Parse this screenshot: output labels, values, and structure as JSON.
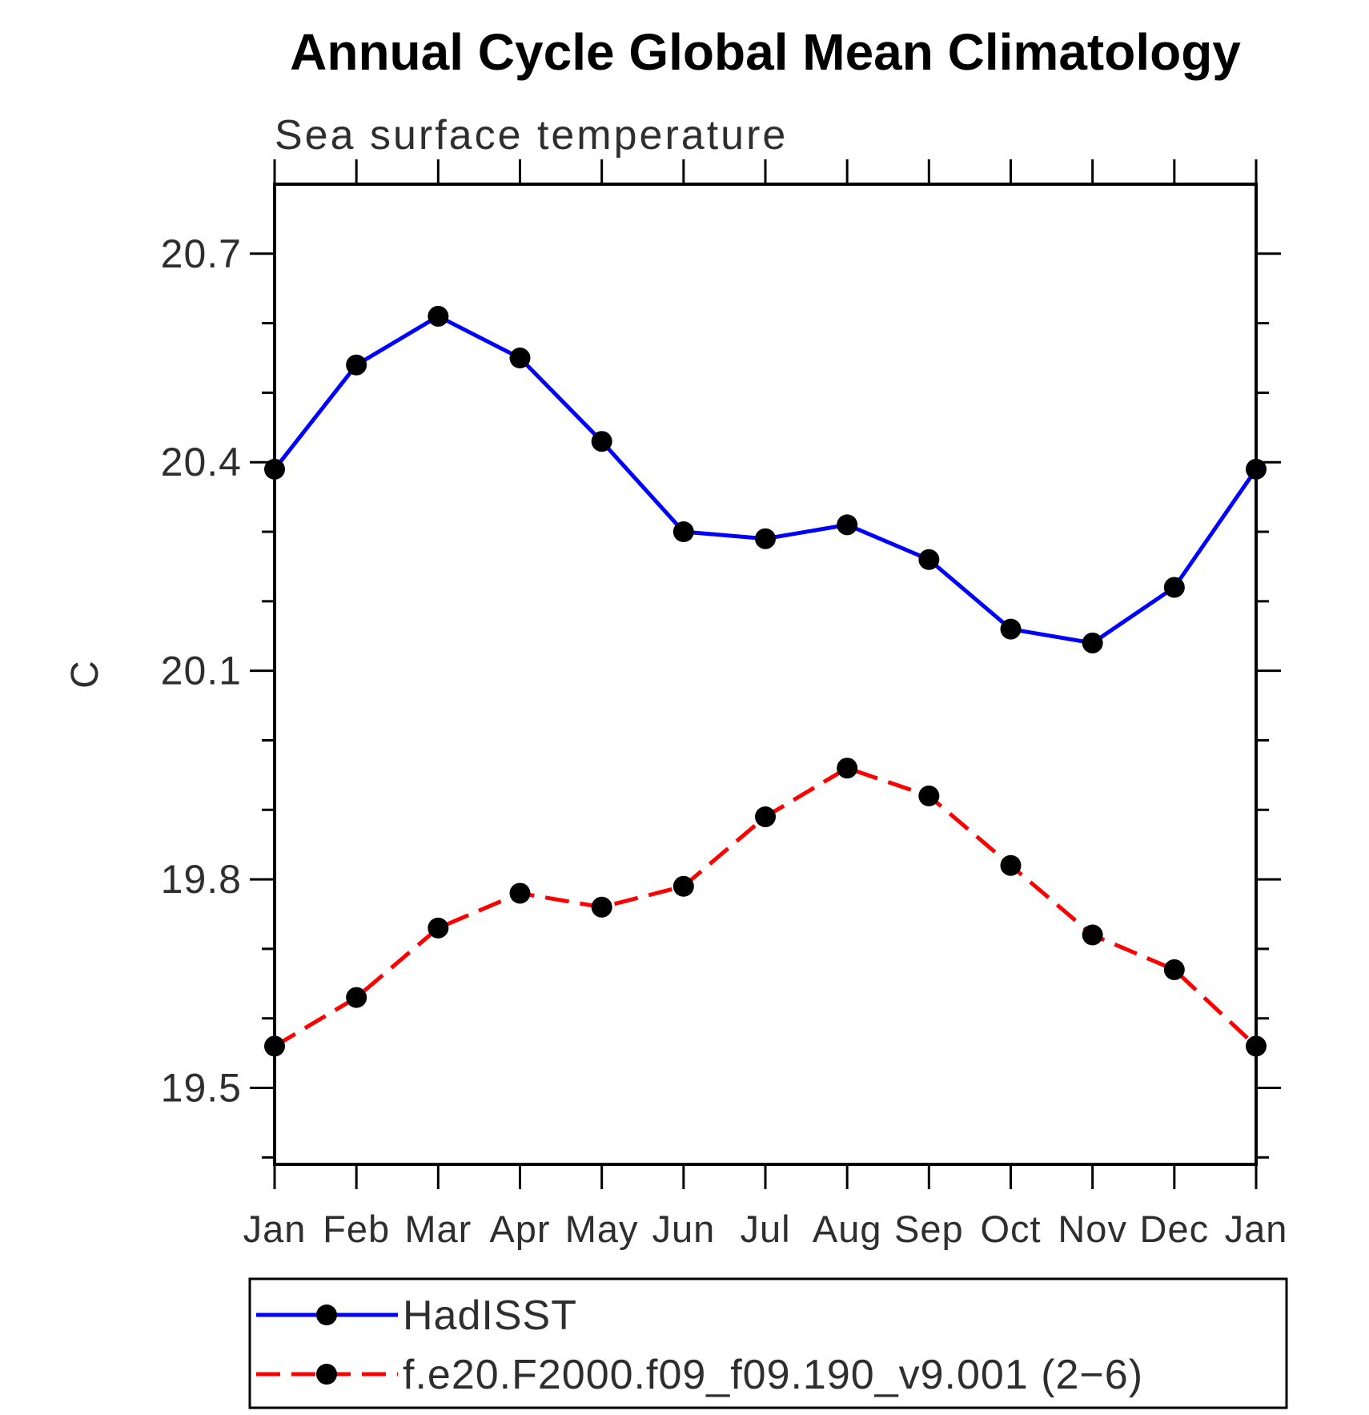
{
  "title": "Annual Cycle Global Mean Climatology",
  "subtitle": "Sea surface temperature",
  "chart_data": {
    "type": "line",
    "x_categories": [
      "Jan",
      "Feb",
      "Mar",
      "Apr",
      "May",
      "Jun",
      "Jul",
      "Aug",
      "Sep",
      "Oct",
      "Nov",
      "Dec",
      "Jan"
    ],
    "ylabel": "C",
    "ylim": [
      19.39,
      20.8
    ],
    "yticks_major": [
      19.5,
      19.8,
      20.1,
      20.4,
      20.7
    ],
    "ytick_labels": [
      "19.5",
      "19.8",
      "20.1",
      "20.4",
      "20.7"
    ],
    "ytick_minor_step": 0.1,
    "grid": false,
    "legend_position": "bottom-left-box",
    "axis_color": "#000000",
    "series": [
      {
        "name": "HadISST",
        "color": "#0000ff",
        "line_style": "solid",
        "marker": "filled-circle",
        "marker_color": "#000000",
        "values": [
          20.39,
          20.54,
          20.61,
          20.55,
          20.43,
          20.3,
          20.29,
          20.31,
          20.26,
          20.16,
          20.14,
          20.22,
          20.39
        ]
      },
      {
        "name": "f.e20.F2000.f09_f09.190_v9.001 (2−6)",
        "color": "#ff0000",
        "line_style": "dashed",
        "marker": "filled-circle",
        "marker_color": "#000000",
        "values": [
          19.56,
          19.63,
          19.73,
          19.78,
          19.76,
          19.79,
          19.89,
          19.96,
          19.92,
          19.82,
          19.72,
          19.67,
          19.56
        ]
      }
    ]
  }
}
